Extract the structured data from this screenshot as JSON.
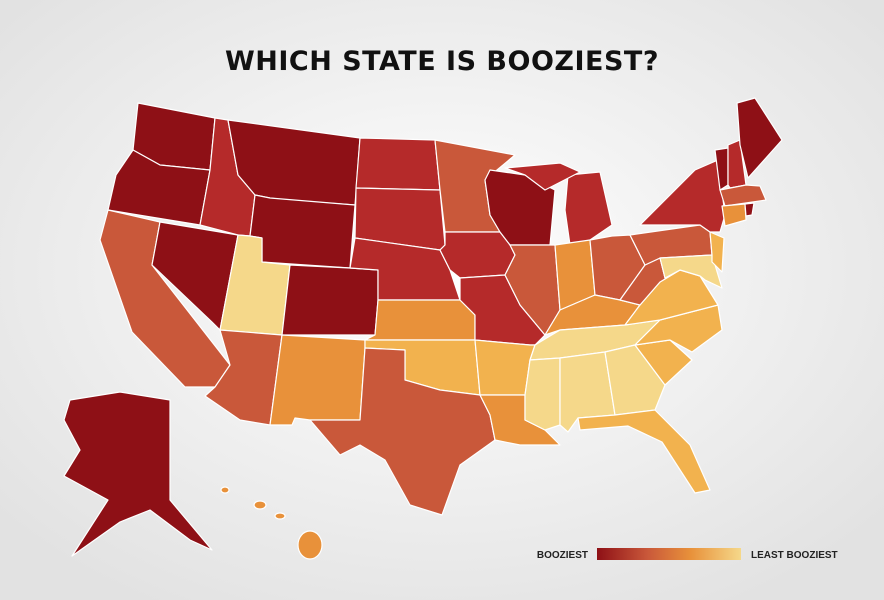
{
  "title": "WHICH STATE IS BOOZIEST?",
  "legend": {
    "high_label": "BOOZIEST",
    "low_label": "LEAST BOOZIEST"
  }
}
